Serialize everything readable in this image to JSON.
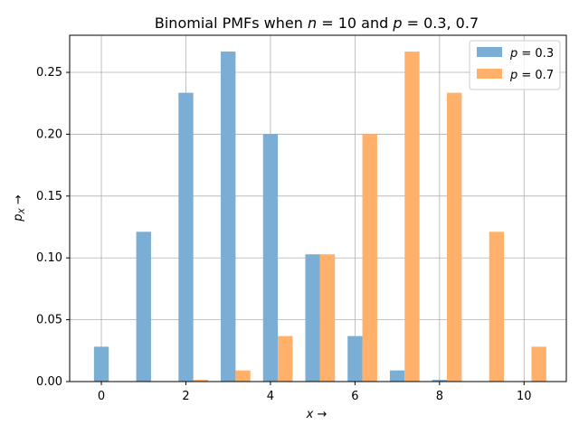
{
  "chart_data": {
    "type": "bar",
    "title": "Binomial PMFs when n = 10 and p = 0.3, 0.7",
    "xlabel": "x →",
    "ylabel": "p_X →",
    "x": [
      0,
      1,
      2,
      3,
      4,
      5,
      6,
      7,
      8,
      9,
      10
    ],
    "xlim": [
      -0.75,
      11.0
    ],
    "ylim": [
      0,
      0.28
    ],
    "xticks": [
      0,
      2,
      4,
      6,
      8,
      10
    ],
    "yticks": [
      0.0,
      0.05,
      0.1,
      0.15,
      0.2,
      0.25
    ],
    "ytick_labels": [
      "0.00",
      "0.05",
      "0.10",
      "0.15",
      "0.20",
      "0.25"
    ],
    "grid": true,
    "legend_position": "top-right",
    "series": [
      {
        "name": "p = 0.3",
        "color": "#7aaed4",
        "offset": 0,
        "values": [
          0.0282,
          0.1211,
          0.2335,
          0.2668,
          0.2001,
          0.1029,
          0.0368,
          0.009,
          0.0014,
          0.0001,
          0.0
        ]
      },
      {
        "name": "p = 0.7",
        "color": "#ffb06a",
        "offset": 0.35,
        "values": [
          0.0,
          0.0001,
          0.0014,
          0.009,
          0.0368,
          0.1029,
          0.2001,
          0.2668,
          0.2335,
          0.1211,
          0.0282
        ]
      }
    ],
    "bar_width": 0.35
  }
}
